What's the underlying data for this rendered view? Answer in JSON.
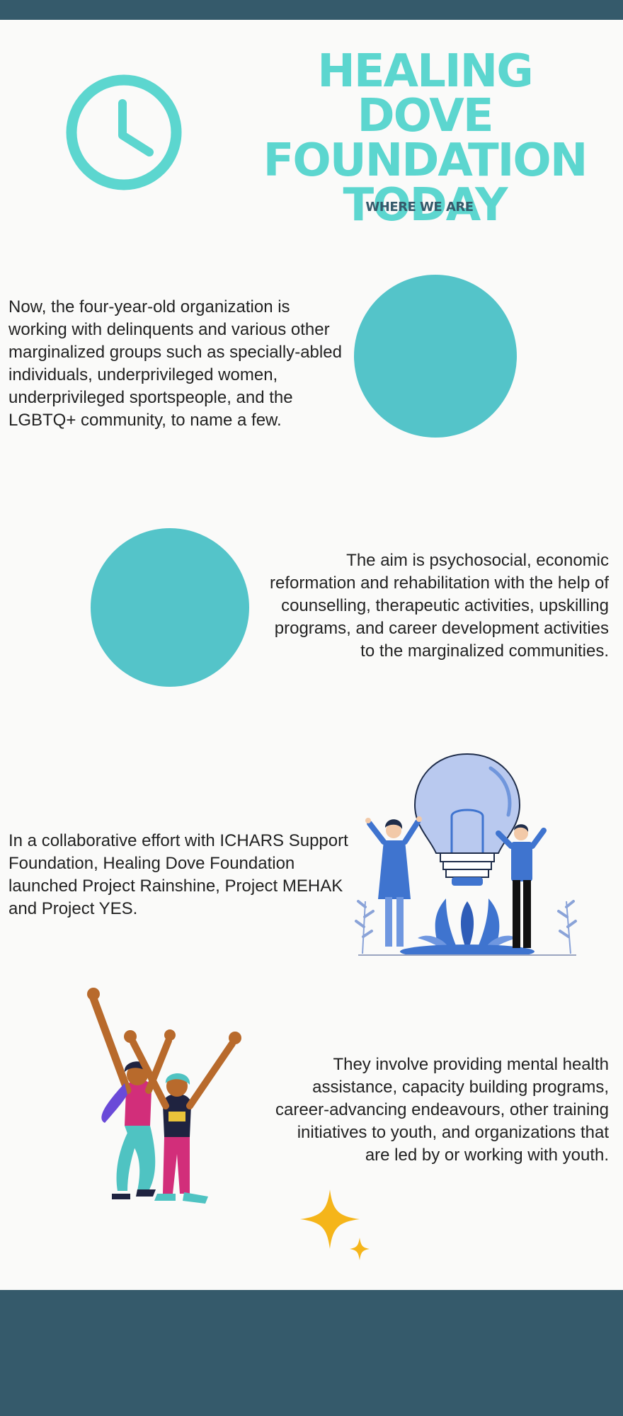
{
  "header": {
    "title": "HEALING DOVE FOUNDATION TODAY",
    "subtitle": "WHERE WE ARE"
  },
  "sections": [
    {
      "text": "Now, the four-year-old organization is working with delinquents and various other marginalized groups such as specially-abled individuals, underprivileged women, underprivileged sportspeople, and the LGBTQ+ community, to name a few."
    },
    {
      "text": "The aim is psychosocial, economic reformation and rehabilitation with the help of counselling, therapeutic activities, upskilling programs, and career development activities to the marginalized communities."
    },
    {
      "text": "In a collaborative effort with ICHARS Support Foundation, Healing Dove Foundation launched Project Rainshine, Project MEHAK and Project YES."
    },
    {
      "text": "They involve providing mental health assistance, capacity building programs, career-advancing endeavours, other training initiatives to youth, and organizations that are led by or working with youth."
    }
  ],
  "colors": {
    "accent": "#5cd6cf",
    "circle": "#54c4c9",
    "dark_band": "#355a6b",
    "background": "#fafaf9",
    "text": "#222222",
    "star": "#f5b51a",
    "illustration_blue": "#3f74cf"
  },
  "icons": [
    "clock-icon",
    "light-bulb-people-illustration",
    "dancing-people-illustration",
    "sparkle-star-icon"
  ]
}
